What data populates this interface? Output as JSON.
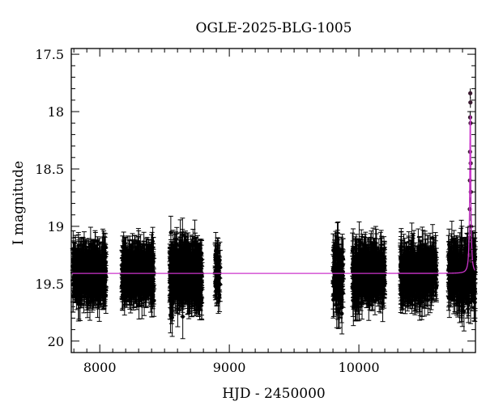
{
  "chart_data": {
    "type": "scatter",
    "title": "OGLE-2025-BLG-1005",
    "xlabel": "HJD - 2450000",
    "ylabel": "I magnitude",
    "xlim": [
      7780,
      10900
    ],
    "ylim": [
      20.1,
      17.45
    ],
    "y_inverted": true,
    "x_ticks": [
      8000,
      9000,
      10000
    ],
    "y_ticks": [
      17.5,
      18,
      18.5,
      19,
      19.5,
      20
    ],
    "x_tick_labels": [
      "8000",
      "9000",
      "10000"
    ],
    "y_tick_labels": [
      "17.5",
      "18",
      "18.5",
      "19",
      "19.5",
      "20"
    ],
    "grid": false,
    "baseline_mag": 19.41,
    "series": [
      {
        "kind": "photometry",
        "color": "#000000",
        "marker": "filled-circle-with-errorbars",
        "seasons": [
          {
            "x_range": [
              7790,
              8050
            ],
            "count": 520,
            "mean_mag": 19.41,
            "scatter": 0.1,
            "typical_err": 0.13
          },
          {
            "x_range": [
              8170,
              8420
            ],
            "count": 520,
            "mean_mag": 19.41,
            "scatter": 0.1,
            "typical_err": 0.13
          },
          {
            "x_range": [
              8540,
              8790
            ],
            "count": 560,
            "mean_mag": 19.42,
            "scatter": 0.11,
            "typical_err": 0.15
          },
          {
            "x_range": [
              8890,
              8930
            ],
            "count": 60,
            "mean_mag": 19.41,
            "scatter": 0.1,
            "typical_err": 0.13
          },
          {
            "x_range": [
              9800,
              9880
            ],
            "count": 120,
            "mean_mag": 19.42,
            "scatter": 0.12,
            "typical_err": 0.15
          },
          {
            "x_range": [
              9950,
              10200
            ],
            "count": 480,
            "mean_mag": 19.41,
            "scatter": 0.1,
            "typical_err": 0.14
          },
          {
            "x_range": [
              10320,
              10600
            ],
            "count": 480,
            "mean_mag": 19.41,
            "scatter": 0.1,
            "typical_err": 0.14
          },
          {
            "x_range": [
              10690,
              10900
            ],
            "count": 380,
            "mean_mag": 19.41,
            "scatter": 0.11,
            "typical_err": 0.15
          }
        ],
        "event_points": [
          {
            "x": 10860,
            "y": 17.84
          },
          {
            "x": 10861,
            "y": 17.92
          },
          {
            "x": 10859,
            "y": 18.05
          },
          {
            "x": 10862,
            "y": 18.1
          },
          {
            "x": 10858,
            "y": 18.35
          },
          {
            "x": 10863,
            "y": 18.45
          },
          {
            "x": 10857,
            "y": 18.6
          },
          {
            "x": 10864,
            "y": 18.7
          },
          {
            "x": 10856,
            "y": 18.85
          },
          {
            "x": 10865,
            "y": 19.0
          },
          {
            "x": 10855,
            "y": 19.1
          },
          {
            "x": 10866,
            "y": 19.2
          },
          {
            "x": 10854,
            "y": 19.25
          },
          {
            "x": 10867,
            "y": 19.3
          }
        ]
      },
      {
        "kind": "model",
        "color": "#cc33cc",
        "baseline": 19.41,
        "peak_x": 10860,
        "peak_mag": 17.98,
        "width": 8
      }
    ]
  }
}
